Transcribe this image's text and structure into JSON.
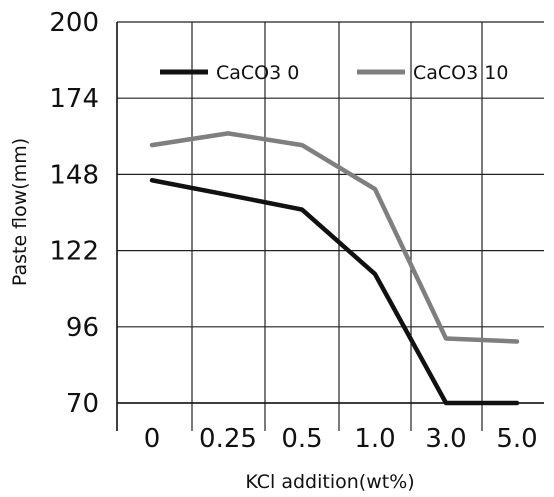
{
  "chart_data": {
    "type": "line",
    "xlabel": "KCl addition(wt%)",
    "ylabel": "Paste flow(mm)",
    "categories": [
      "0",
      "0.25",
      "0.5",
      "1.0",
      "3.0",
      "5.0"
    ],
    "ylim": [
      70,
      200
    ],
    "yticks": [
      70,
      96,
      122,
      148,
      174,
      200
    ],
    "grid": true,
    "legend_position": "top",
    "series": [
      {
        "name": "CaCO3 0",
        "color": "#111111",
        "values": [
          146,
          141,
          136,
          114,
          70,
          70
        ]
      },
      {
        "name": "CaCO3 10",
        "color": "#7f7f7f",
        "values": [
          158,
          162,
          158,
          143,
          92,
          91
        ]
      }
    ]
  }
}
